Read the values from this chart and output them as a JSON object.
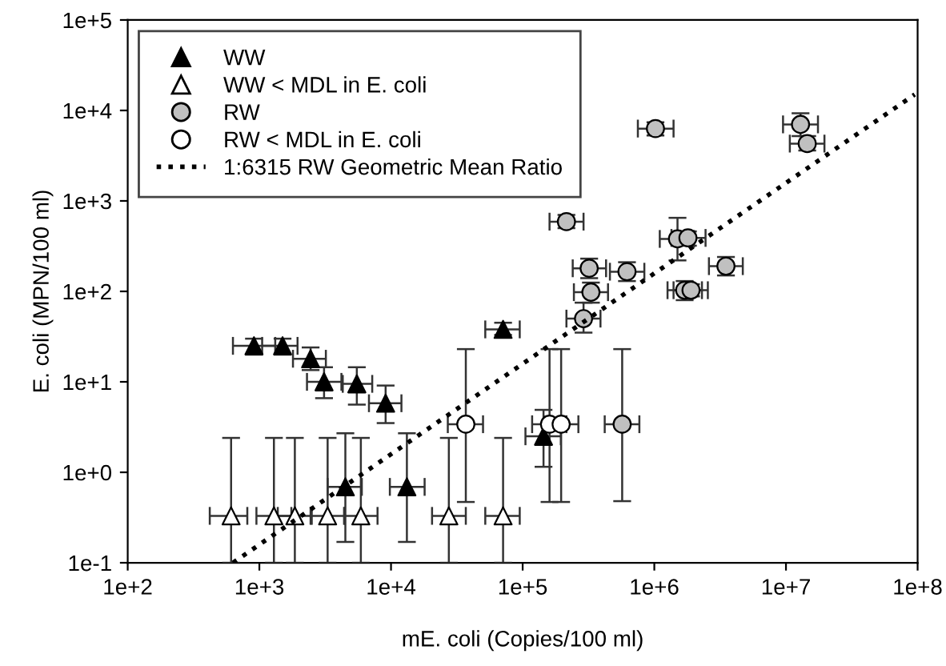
{
  "chart_data": {
    "type": "scatter",
    "xlabel": "mE. coli (Copies/100 ml)",
    "ylabel": "E. coli (MPN/100 ml)",
    "log": "xy",
    "grid": false,
    "legend": "top left",
    "xlim": [
      100,
      100000000
    ],
    "ylim": [
      0.1,
      100000
    ],
    "xticks": [
      {
        "value": 100,
        "label": "1e+2"
      },
      {
        "value": 1000,
        "label": "1e+3"
      },
      {
        "value": 10000,
        "label": "1e+4"
      },
      {
        "value": 100000,
        "label": "1e+5"
      },
      {
        "value": 1000000,
        "label": "1e+6"
      },
      {
        "value": 10000000,
        "label": "1e+7"
      },
      {
        "value": 100000000,
        "label": "1e+8"
      }
    ],
    "yticks": [
      {
        "value": 0.1,
        "label": "1e-1"
      },
      {
        "value": 1,
        "label": "1e+0"
      },
      {
        "value": 10,
        "label": "1e+1"
      },
      {
        "value": 100,
        "label": "1e+2"
      },
      {
        "value": 1000,
        "label": "1e+3"
      },
      {
        "value": 10000,
        "label": "1e+4"
      },
      {
        "value": 100000,
        "label": "1e+5"
      }
    ],
    "series": [
      {
        "name": "WW",
        "marker": "triangle",
        "color": "#000000",
        "x": [
          910,
          1500,
          2450,
          3100,
          5500,
          9100,
          4500,
          13200,
          71000,
          144000
        ],
        "values": [
          25,
          25,
          18,
          10,
          9.5,
          5.8,
          0.69,
          0.69,
          38,
          2.5
        ],
        "xerrors": [
          [
            630,
            1320
          ],
          [
            1050,
            1950
          ],
          [
            1800,
            3200
          ],
          [
            2300,
            4200
          ],
          [
            4300,
            7200
          ],
          [
            6800,
            12000
          ],
          [
            3300,
            6000
          ],
          [
            9800,
            18000
          ],
          [
            52000,
            95000
          ],
          [
            105000,
            195000
          ]
        ],
        "errors": [
          [
            20,
            30
          ],
          [
            20,
            30
          ],
          [
            13.5,
            24
          ],
          [
            6.6,
            14.5
          ],
          [
            5.6,
            14.5
          ],
          [
            3.5,
            9.1
          ],
          [
            0.17,
            2.7
          ],
          [
            0.17,
            2.7
          ],
          [
            33,
            45
          ],
          [
            1.15,
            4.9
          ]
        ]
      },
      {
        "name": "WW < MDL in E. coli",
        "marker": "triangle",
        "color": "#ffffff",
        "x": [
          610,
          1290,
          1860,
          3300,
          5900,
          27500,
          71000
        ],
        "values": [
          0.33,
          0.33,
          0.33,
          0.33,
          0.33,
          0.33,
          0.33
        ],
        "xerrors": [
          [
            420,
            810
          ],
          [
            950,
            1750
          ],
          [
            1380,
            2500
          ],
          [
            2450,
            4450
          ],
          [
            4400,
            7900
          ],
          [
            20500,
            37000
          ],
          [
            52000,
            95000
          ]
        ],
        "errors": [
          [
            0.1,
            2.4
          ],
          [
            0.1,
            2.4
          ],
          [
            0.1,
            2.4
          ],
          [
            0.1,
            2.4
          ],
          [
            0.1,
            2.4
          ],
          [
            0.1,
            2.4
          ],
          [
            0.1,
            2.4
          ]
        ]
      },
      {
        "name": "RW",
        "marker": "circle",
        "color": "#c0c0c0",
        "x": [
          1020000,
          12900000,
          14500000,
          215000,
          1500000,
          1800000,
          320000,
          620000,
          3500000,
          330000,
          1700000,
          1900000,
          290000,
          570000
        ],
        "values": [
          6300,
          7000,
          4300,
          590,
          380,
          390,
          180,
          165,
          190,
          98,
          103,
          103,
          50,
          3.4
        ],
        "xerrors": [
          [
            750000,
            1400000
          ],
          [
            9500000,
            17500000
          ],
          [
            10700000,
            19600000
          ],
          [
            160000,
            290000
          ],
          [
            1100000,
            2000000
          ],
          [
            1350000,
            2450000
          ],
          [
            240000,
            430000
          ],
          [
            460000,
            840000
          ],
          [
            2600000,
            4700000
          ],
          [
            245000,
            445000
          ],
          [
            1260000,
            2300000
          ],
          [
            1400000,
            2550000
          ],
          [
            215000,
            390000
          ],
          [
            420000,
            770000
          ]
        ],
        "errors": [
          [
            5300,
            7400
          ],
          [
            5200,
            9300
          ],
          [
            3600,
            5200
          ],
          [
            500,
            700
          ],
          [
            220,
            650
          ],
          [
            320,
            460
          ],
          [
            140,
            230
          ],
          [
            130,
            210
          ],
          [
            150,
            240
          ],
          [
            75,
            125
          ],
          [
            80,
            130
          ],
          [
            88,
            120
          ],
          [
            35,
            75
          ],
          [
            0.48,
            23
          ]
        ]
      },
      {
        "name": "RW < MDL in E. coli",
        "marker": "circle",
        "color": "#ffffff",
        "x": [
          37000,
          160000,
          196000
        ],
        "values": [
          3.4,
          3.4,
          3.4
        ],
        "xerrors": [
          [
            27000,
            50000
          ],
          [
            118000,
            215000
          ],
          [
            145000,
            265000
          ]
        ],
        "errors": [
          [
            0.47,
            23
          ],
          [
            0.47,
            23
          ],
          [
            0.47,
            23
          ]
        ]
      },
      {
        "name": "1:6315 RW Geometric Mean Ratio",
        "type": "line",
        "line_style": "dotted",
        "marker": "none",
        "color": "#000000",
        "x": [
          630,
          95000000
        ],
        "values": [
          0.1,
          15000
        ]
      }
    ]
  }
}
